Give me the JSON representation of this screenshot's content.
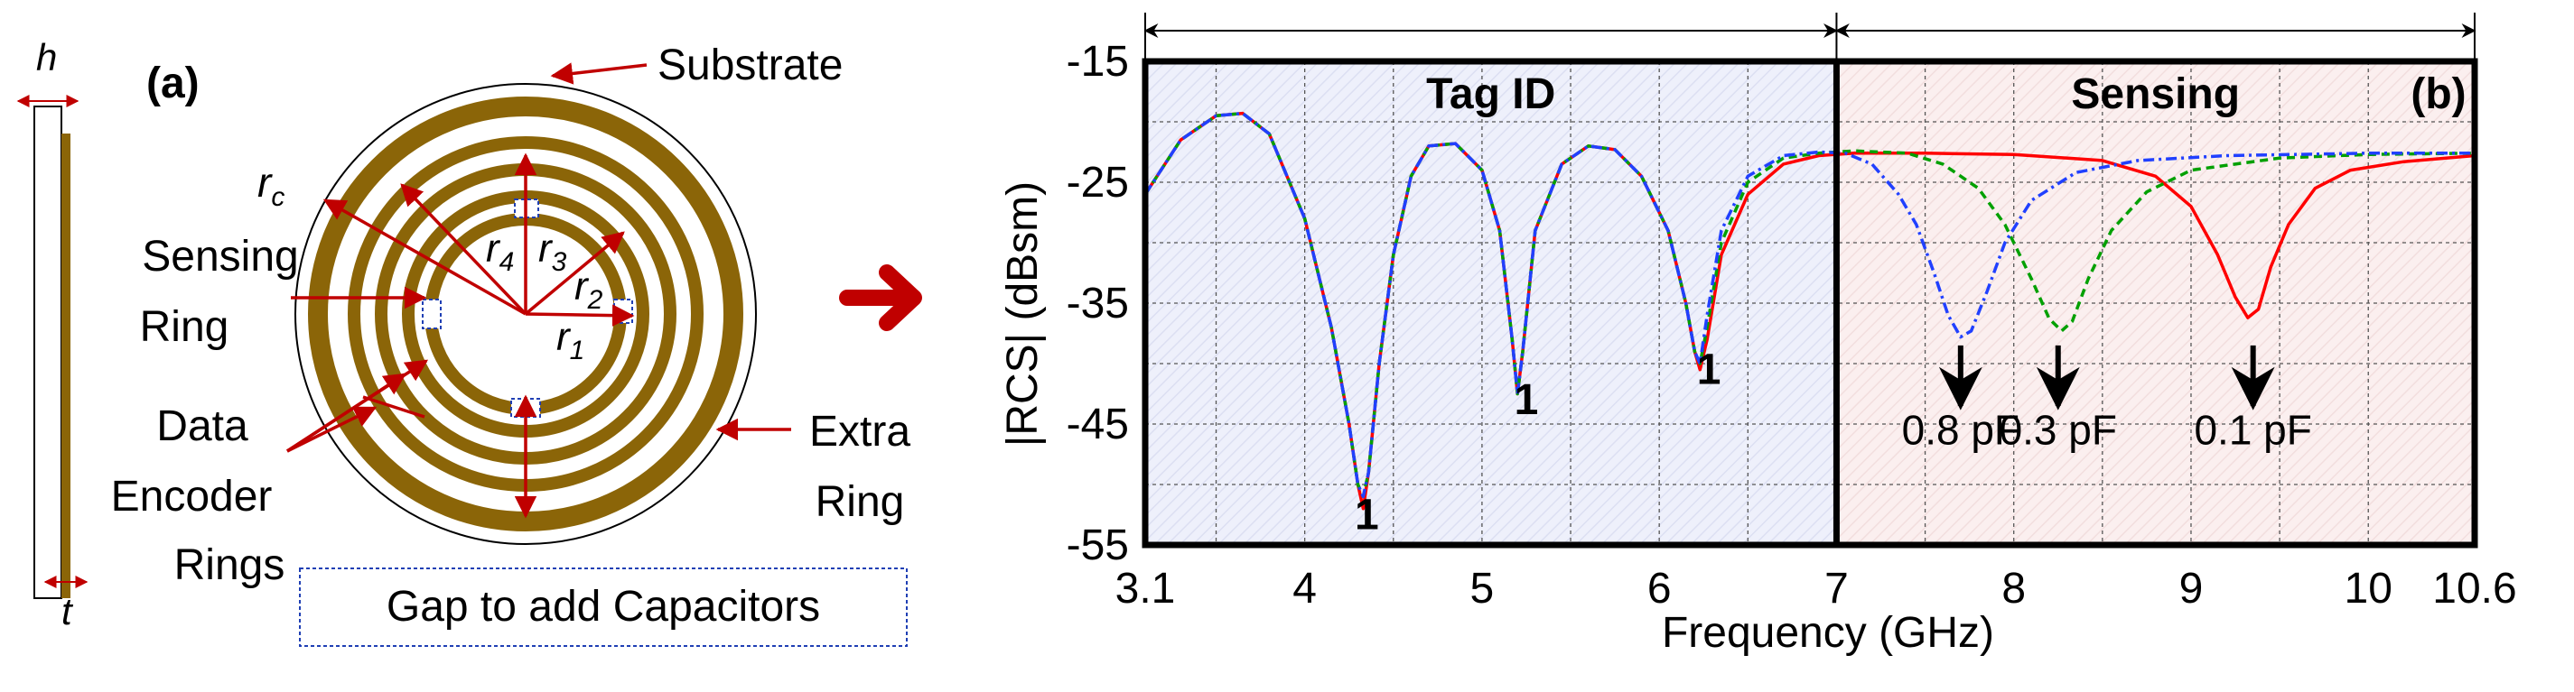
{
  "panel_a": {
    "label": "(a)",
    "substrate_label": "Substrate",
    "sensing_ring_label": [
      "Sensing",
      "Ring"
    ],
    "data_encoder_label": [
      "Data",
      "Encoder",
      "Rings"
    ],
    "extra_ring_label": [
      "Extra",
      "Ring"
    ],
    "gap_label": "Gap to add Capacitors",
    "thickness_h": "h",
    "thickness_t": "t",
    "radius_c": {
      "main": "r",
      "sub": "c"
    },
    "radius_1": {
      "main": "r",
      "sub": "1"
    },
    "radius_2": {
      "main": "r",
      "sub": "2"
    },
    "radius_3": {
      "main": "r",
      "sub": "3"
    },
    "radius_4": {
      "main": "r",
      "sub": "4"
    },
    "ring_color": "#8B6508",
    "annotation_color": "#C00000"
  },
  "chart_data": {
    "type": "line",
    "panel_label": "(b)",
    "xlabel": "Frequency (GHz)",
    "ylabel": "|RCS| (dBsm)",
    "xlim": [
      3.1,
      10.6
    ],
    "ylim": [
      -55,
      -15
    ],
    "xticks": [
      3.1,
      4,
      5,
      6,
      7,
      8,
      9,
      10,
      10.6
    ],
    "xtick_labels": [
      "3.1",
      "4",
      "5",
      "6",
      "7",
      "8",
      "9",
      "10",
      "10.6"
    ],
    "yticks": [
      -55,
      -45,
      -35,
      -25,
      -15
    ],
    "ytick_labels": [
      "-55",
      "-45",
      "-35",
      "-25",
      "-15"
    ],
    "grid": true,
    "regions": [
      {
        "label": "Tag ID",
        "x": [
          3.1,
          7
        ],
        "fill": "#eef0fb"
      },
      {
        "label": "Sensing",
        "x": [
          7,
          10.6
        ],
        "fill": "#fbefef"
      }
    ],
    "bit_labels": [
      {
        "text": "1",
        "x": 4.35,
        "y": -52.5
      },
      {
        "text": "1",
        "x": 5.25,
        "y": -43
      },
      {
        "text": "1",
        "x": 6.28,
        "y": -40.5
      }
    ],
    "cap_annotations": [
      {
        "text": "0.8 pF",
        "x": 7.7,
        "arrow_from": -38.5,
        "arrow_to": -43.5,
        "text_y": -45.5
      },
      {
        "text": "0.3 pF",
        "x": 8.25,
        "arrow_from": -38.5,
        "arrow_to": -43.5,
        "text_y": -45.5
      },
      {
        "text": "0.1 pF",
        "x": 9.35,
        "arrow_from": -38.5,
        "arrow_to": -43.5,
        "text_y": -45.5
      }
    ],
    "series": [
      {
        "color": "#ff0000",
        "dash": "",
        "x": [
          3.1,
          3.3,
          3.5,
          3.65,
          3.8,
          4.0,
          4.15,
          4.25,
          4.3,
          4.33,
          4.36,
          4.42,
          4.5,
          4.6,
          4.7,
          4.85,
          5.0,
          5.1,
          5.17,
          5.2,
          5.23,
          5.3,
          5.45,
          5.6,
          5.75,
          5.9,
          6.05,
          6.15,
          6.2,
          6.23,
          6.27,
          6.35,
          6.5,
          6.7,
          6.9,
          7.1,
          7.5,
          8.0,
          8.5,
          8.8,
          9.0,
          9.15,
          9.25,
          9.32,
          9.38,
          9.45,
          9.55,
          9.7,
          9.9,
          10.2,
          10.6
        ],
        "y": [
          -26,
          -21.5,
          -19.5,
          -19.3,
          -21,
          -28,
          -37,
          -45,
          -50,
          -52,
          -49,
          -40,
          -31,
          -24.5,
          -22,
          -21.8,
          -24,
          -29,
          -38,
          -42.5,
          -39,
          -29,
          -23.5,
          -22,
          -22.3,
          -24.5,
          -29,
          -35,
          -39,
          -40.5,
          -38,
          -31,
          -26,
          -23.5,
          -22.8,
          -22.6,
          -22.6,
          -22.7,
          -23.2,
          -24.5,
          -27,
          -31,
          -34.5,
          -36.2,
          -35.5,
          -32,
          -28.5,
          -25.5,
          -24,
          -23.3,
          -22.8
        ]
      },
      {
        "color": "#00a000",
        "dash": "9,6",
        "x": [
          3.1,
          3.3,
          3.5,
          3.65,
          3.8,
          4.0,
          4.15,
          4.25,
          4.3,
          4.33,
          4.36,
          4.42,
          4.5,
          4.6,
          4.7,
          4.85,
          5.0,
          5.1,
          5.17,
          5.2,
          5.23,
          5.3,
          5.45,
          5.6,
          5.75,
          5.9,
          6.05,
          6.15,
          6.2,
          6.23,
          6.27,
          6.35,
          6.5,
          6.7,
          6.9,
          7.1,
          7.4,
          7.6,
          7.8,
          7.95,
          8.1,
          8.2,
          8.27,
          8.33,
          8.42,
          8.55,
          8.75,
          9.0,
          9.5,
          10.0,
          10.6
        ],
        "y": [
          -26,
          -21.5,
          -19.5,
          -19.3,
          -21,
          -28,
          -37,
          -45,
          -50,
          -51,
          -49,
          -40,
          -31,
          -24.5,
          -22,
          -21.8,
          -24,
          -29,
          -38,
          -42.5,
          -39,
          -29,
          -23.5,
          -22,
          -22.3,
          -24.5,
          -29,
          -35,
          -39,
          -40,
          -37,
          -30,
          -25,
          -23,
          -22.6,
          -22.4,
          -22.6,
          -23.5,
          -25.5,
          -28.5,
          -33,
          -36.3,
          -37.3,
          -36.5,
          -33,
          -29,
          -25.8,
          -24,
          -23,
          -22.7,
          -22.6
        ]
      },
      {
        "color": "#2040ff",
        "dash": "12,5,3,5",
        "x": [
          3.1,
          3.3,
          3.5,
          3.65,
          3.8,
          4.0,
          4.15,
          4.25,
          4.3,
          4.33,
          4.36,
          4.42,
          4.5,
          4.6,
          4.7,
          4.85,
          5.0,
          5.1,
          5.17,
          5.2,
          5.23,
          5.3,
          5.45,
          5.6,
          5.75,
          5.9,
          6.05,
          6.15,
          6.2,
          6.23,
          6.27,
          6.35,
          6.5,
          6.7,
          6.9,
          7.05,
          7.2,
          7.35,
          7.45,
          7.55,
          7.63,
          7.7,
          7.76,
          7.85,
          7.95,
          8.1,
          8.35,
          8.7,
          9.2,
          10.0,
          10.6
        ],
        "y": [
          -26,
          -21.5,
          -19.5,
          -19.3,
          -21,
          -28,
          -37,
          -45,
          -50,
          -51,
          -49,
          -40,
          -31,
          -24.5,
          -22,
          -21.8,
          -24,
          -29,
          -38,
          -42.5,
          -39,
          -29,
          -23.5,
          -22,
          -22.3,
          -24.5,
          -29,
          -35,
          -39,
          -40,
          -36,
          -29,
          -24.5,
          -22.8,
          -22.5,
          -22.6,
          -23.5,
          -26,
          -28.5,
          -32.5,
          -36,
          -37.8,
          -37.3,
          -34,
          -30,
          -26.5,
          -24.2,
          -23.2,
          -22.8,
          -22.6,
          -22.6
        ]
      }
    ]
  },
  "big_arrow_color": "#C00000"
}
